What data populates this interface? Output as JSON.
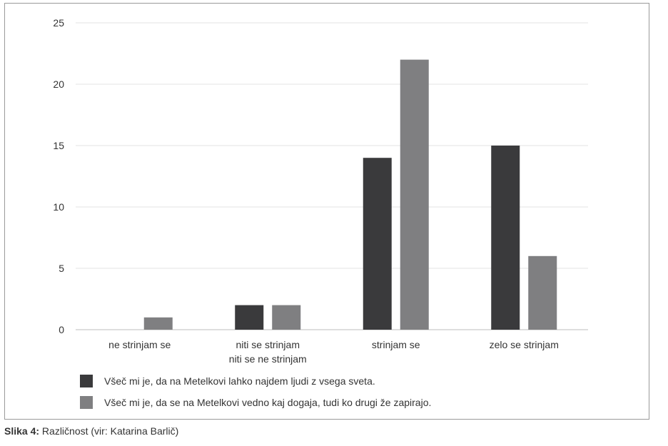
{
  "chart_data": {
    "type": "bar",
    "categories": [
      [
        "ne strinjam se"
      ],
      [
        "niti se strinjam",
        "niti se ne strinjam"
      ],
      [
        "strinjam se"
      ],
      [
        "zelo se strinjam"
      ]
    ],
    "series": [
      {
        "name": "Všeč mi je, da na Metelkovi lahko najdem ljudi z vsega sveta.",
        "color": "#3a3a3c",
        "values": [
          0,
          2,
          14,
          15
        ]
      },
      {
        "name": "Všeč mi je, da se na Metelkovi vedno kaj dogaja, tudi ko drugi že zapirajo.",
        "color": "#7f7f81",
        "values": [
          1,
          2,
          22,
          6
        ]
      }
    ],
    "ylim": [
      0,
      25
    ],
    "yticks": [
      0,
      5,
      10,
      15,
      20,
      25
    ],
    "grid": true,
    "legend_position": "bottom-left"
  },
  "caption": {
    "label": "Slika 4:",
    "text": " Različnost (vir: Katarina Barlič)"
  }
}
